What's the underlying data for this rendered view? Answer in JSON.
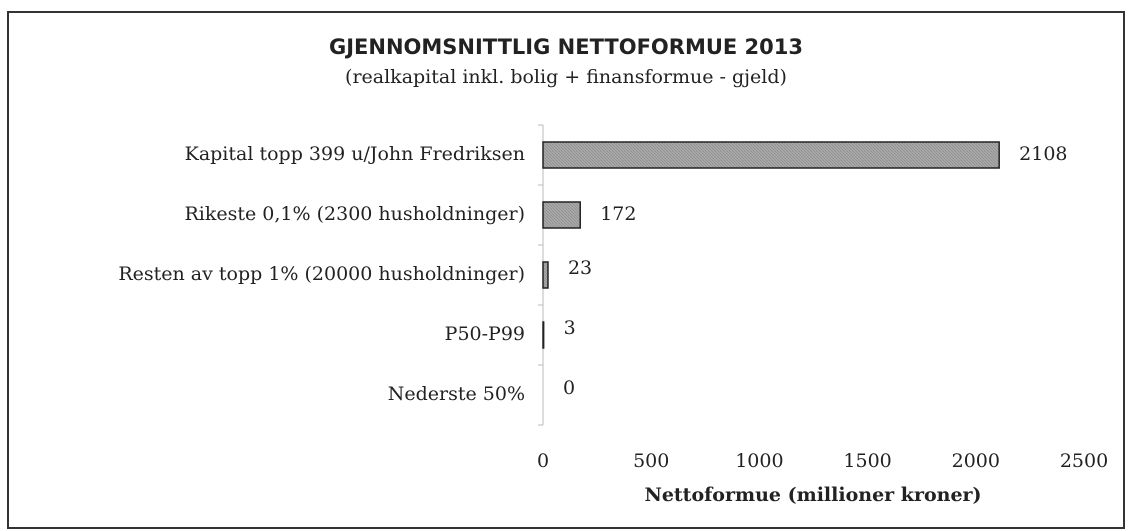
{
  "chart_data": {
    "type": "bar",
    "orientation": "horizontal",
    "title": "GJENNOMSNITTLIG NETTOFORMUE 2013",
    "subtitle": "(realkapital inkl. bolig + finansformue - gjeld)",
    "xlabel": "Nettoformue (millioner kroner)",
    "categories": [
      "Kapital topp 399 u/John Fredriksen",
      "Rikeste 0,1% (2300 husholdninger)",
      "Resten av topp 1% (20000 husholdninger)",
      "P50-P99",
      "Nederste 50%"
    ],
    "values": [
      2108,
      172,
      23,
      3,
      0
    ],
    "color": "#a9a9a9",
    "xlim": [
      0,
      2500
    ],
    "xticks": [
      0,
      500,
      1000,
      1500,
      2000,
      2500
    ],
    "grid": false
  }
}
